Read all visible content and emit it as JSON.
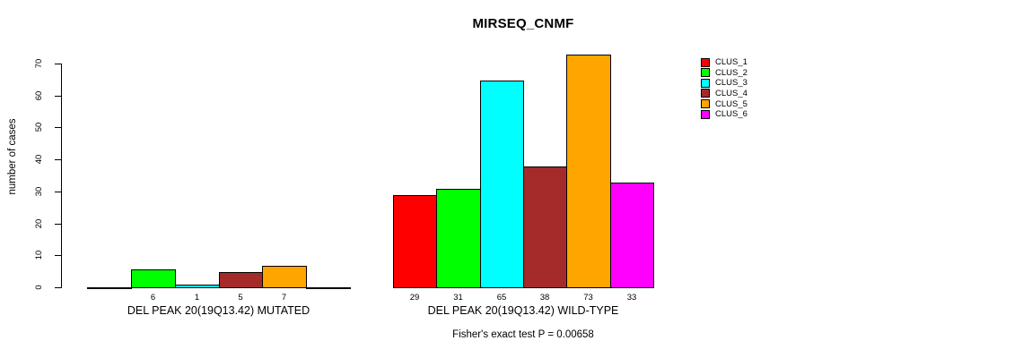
{
  "chart_data": {
    "type": "bar",
    "title": "MIRSEQ_CNMF",
    "ylabel": "number of cases",
    "xlabel": "",
    "ylim": [
      0,
      70
    ],
    "y_ticks": [
      0,
      10,
      20,
      30,
      40,
      50,
      60,
      70
    ],
    "grid": false,
    "categories": [
      "CLUS_1",
      "CLUS_2",
      "CLUS_3",
      "CLUS_4",
      "CLUS_5",
      "CLUS_6"
    ],
    "colors": [
      "#ff0000",
      "#00ff00",
      "#00ffff",
      "#a52a2a",
      "#ffa500",
      "#ff00ff"
    ],
    "groups": [
      {
        "name": "DEL PEAK 20(19Q13.42) MUTATED",
        "values": [
          0,
          6,
          1,
          5,
          7,
          0
        ],
        "bar_labels": [
          "",
          "6",
          "1",
          "5",
          "7",
          ""
        ]
      },
      {
        "name": "DEL PEAK 20(19Q13.42) WILD-TYPE",
        "values": [
          29,
          31,
          65,
          38,
          73,
          33
        ],
        "bar_labels": [
          "29",
          "31",
          "65",
          "38",
          "73",
          "33"
        ]
      }
    ],
    "legend": {
      "position": "right",
      "entries": [
        {
          "label": "CLUS_1",
          "color": "#ff0000"
        },
        {
          "label": "CLUS_2",
          "color": "#00ff00"
        },
        {
          "label": "CLUS_3",
          "color": "#00ffff"
        },
        {
          "label": "CLUS_4",
          "color": "#a52a2a"
        },
        {
          "label": "CLUS_5",
          "color": "#ffa500"
        },
        {
          "label": "CLUS_6",
          "color": "#ff00ff"
        }
      ]
    },
    "annotation": "Fisher's exact test P = 0.00658"
  }
}
